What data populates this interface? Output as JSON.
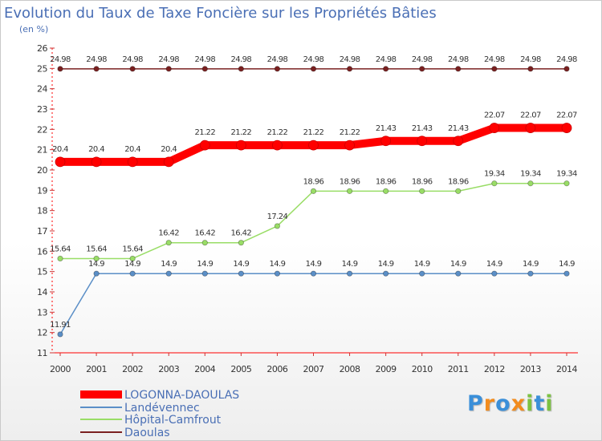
{
  "chart_data": {
    "type": "line",
    "title": "Evolution du Taux de Taxe Foncière sur les Propriétés Bâties",
    "subtitle": "(en %)",
    "xlabel": "",
    "ylabel": "",
    "ylim": [
      11,
      26
    ],
    "yticks": [
      11,
      12,
      13,
      14,
      15,
      16,
      17,
      18,
      19,
      20,
      21,
      22,
      23,
      24,
      25,
      26
    ],
    "x": [
      "2000",
      "2001",
      "2002",
      "2003",
      "2004",
      "2005",
      "2006",
      "2007",
      "2008",
      "2009",
      "2010",
      "2011",
      "2012",
      "2013",
      "2014"
    ],
    "grid": false,
    "legend_position": "bottom-left",
    "series": [
      {
        "name": "LOGONNA-DAOULAS",
        "color": "#ff0000",
        "values": [
          20.4,
          20.4,
          20.4,
          20.4,
          21.22,
          21.22,
          21.22,
          21.22,
          21.22,
          21.43,
          21.43,
          21.43,
          22.07,
          22.07,
          22.07
        ]
      },
      {
        "name": "Landévennec",
        "color": "#5b8fc7",
        "values": [
          11.91,
          14.9,
          14.9,
          14.9,
          14.9,
          14.9,
          14.9,
          14.9,
          14.9,
          14.9,
          14.9,
          14.9,
          14.9,
          14.9,
          14.9
        ]
      },
      {
        "name": "Hôpital-Camfrout",
        "color": "#99dd66",
        "values": [
          15.64,
          15.64,
          15.64,
          16.42,
          16.42,
          16.42,
          17.24,
          18.96,
          18.96,
          18.96,
          18.96,
          18.96,
          19.34,
          19.34,
          19.34
        ]
      },
      {
        "name": "Daoulas",
        "color": "#7a2020",
        "values": [
          24.98,
          24.98,
          24.98,
          24.98,
          24.98,
          24.98,
          24.98,
          24.98,
          24.98,
          24.98,
          24.98,
          24.98,
          24.98,
          24.98,
          24.98
        ]
      }
    ]
  },
  "watermark": {
    "letters": [
      "P",
      "r",
      "o",
      "x",
      "i",
      "t",
      "i"
    ],
    "colors": [
      "#3a8fd9",
      "#f28c1e",
      "#3a8fd9",
      "#f28c1e",
      "#7cc242",
      "#3a8fd9",
      "#7cc242"
    ]
  }
}
